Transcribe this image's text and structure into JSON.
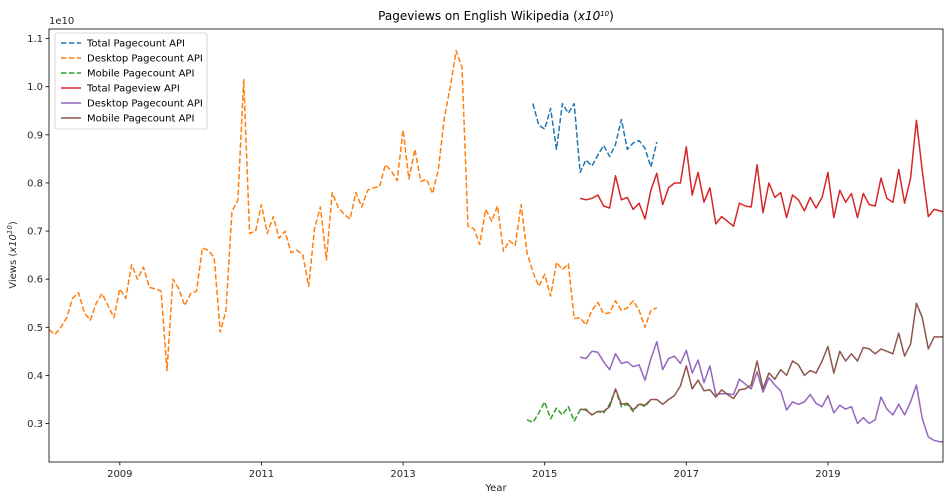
{
  "chart_data": {
    "type": "line",
    "title": {
      "prefix": "Pageviews on English Wikipedia (",
      "base": "x10",
      "exp": "10",
      "suffix": ")"
    },
    "xlabel": "Year",
    "ylabel": {
      "prefix": "Views (",
      "base": "x10",
      "exp": "10",
      "suffix": ")"
    },
    "y_offset_text": "1e10",
    "xlim": [
      2008.0,
      2020.625
    ],
    "ylim": [
      0.22,
      1.12
    ],
    "x_ticks": [
      2009,
      2011,
      2013,
      2015,
      2017,
      2019
    ],
    "x_tick_labels": [
      "2009",
      "2011",
      "2013",
      "2015",
      "2017",
      "2019"
    ],
    "y_ticks": [
      0.3,
      0.4,
      0.5,
      0.6,
      0.7,
      0.8,
      0.9,
      1.0,
      1.1
    ],
    "y_tick_labels": [
      "0.3",
      "0.4",
      "0.5",
      "0.6",
      "0.7",
      "0.8",
      "0.9",
      "1.0",
      "1.1"
    ],
    "grid": false,
    "legend_position": "top-left",
    "series": [
      {
        "name": "Total Pagecount API",
        "color": "#1f77b4",
        "dash": "dashed",
        "x": [
          2014.833,
          2014.917,
          2015.0,
          2015.083,
          2015.167,
          2015.25,
          2015.333,
          2015.417,
          2015.5,
          2015.583,
          2015.667,
          2015.75,
          2015.833,
          2015.917,
          2016.0,
          2016.083,
          2016.167,
          2016.25,
          2016.333,
          2016.417,
          2016.5,
          2016.583
        ],
        "y": [
          0.965,
          0.92,
          0.912,
          0.955,
          0.87,
          0.965,
          0.945,
          0.965,
          0.822,
          0.848,
          0.835,
          0.858,
          0.878,
          0.855,
          0.88,
          0.932,
          0.87,
          0.883,
          0.888,
          0.872,
          0.833,
          0.885
        ]
      },
      {
        "name": "Desktop Pagecount API",
        "color": "#ff7f0e",
        "dash": "dashed",
        "x": [
          2008.0,
          2008.083,
          2008.167,
          2008.25,
          2008.333,
          2008.417,
          2008.5,
          2008.583,
          2008.667,
          2008.75,
          2008.833,
          2008.917,
          2009.0,
          2009.083,
          2009.167,
          2009.25,
          2009.333,
          2009.417,
          2009.5,
          2009.583,
          2009.667,
          2009.75,
          2009.833,
          2009.917,
          2010.0,
          2010.083,
          2010.167,
          2010.25,
          2010.333,
          2010.417,
          2010.5,
          2010.583,
          2010.667,
          2010.75,
          2010.833,
          2010.917,
          2011.0,
          2011.083,
          2011.167,
          2011.25,
          2011.333,
          2011.417,
          2011.5,
          2011.583,
          2011.667,
          2011.75,
          2011.833,
          2011.917,
          2012.0,
          2012.083,
          2012.167,
          2012.25,
          2012.333,
          2012.417,
          2012.5,
          2012.583,
          2012.667,
          2012.75,
          2012.833,
          2012.917,
          2013.0,
          2013.083,
          2013.167,
          2013.25,
          2013.333,
          2013.417,
          2013.5,
          2013.583,
          2013.667,
          2013.75,
          2013.833,
          2013.917,
          2014.0,
          2014.083,
          2014.167,
          2014.25,
          2014.333,
          2014.417,
          2014.5,
          2014.583,
          2014.667,
          2014.75,
          2014.833,
          2014.917,
          2015.0,
          2015.083,
          2015.167,
          2015.25,
          2015.333,
          2015.417,
          2015.5,
          2015.583,
          2015.667,
          2015.75,
          2015.833,
          2015.917,
          2016.0,
          2016.083,
          2016.167,
          2016.25,
          2016.333,
          2016.417,
          2016.5,
          2016.583
        ],
        "y": [
          0.495,
          0.485,
          0.5,
          0.52,
          0.56,
          0.572,
          0.53,
          0.515,
          0.55,
          0.57,
          0.545,
          0.52,
          0.58,
          0.56,
          0.63,
          0.6,
          0.625,
          0.583,
          0.58,
          0.575,
          0.41,
          0.6,
          0.58,
          0.545,
          0.57,
          0.575,
          0.665,
          0.66,
          0.645,
          0.49,
          0.535,
          0.74,
          0.765,
          1.015,
          0.695,
          0.7,
          0.755,
          0.695,
          0.73,
          0.685,
          0.7,
          0.655,
          0.66,
          0.652,
          0.585,
          0.705,
          0.75,
          0.64,
          0.78,
          0.75,
          0.735,
          0.725,
          0.78,
          0.75,
          0.785,
          0.79,
          0.792,
          0.838,
          0.825,
          0.805,
          0.91,
          0.808,
          0.87,
          0.803,
          0.808,
          0.778,
          0.83,
          0.935,
          1.0,
          1.075,
          1.04,
          0.71,
          0.705,
          0.672,
          0.745,
          0.72,
          0.752,
          0.658,
          0.68,
          0.67,
          0.755,
          0.655,
          0.615,
          0.585,
          0.61,
          0.565,
          0.635,
          0.62,
          0.632,
          0.518,
          0.52,
          0.505,
          0.535,
          0.552,
          0.528,
          0.53,
          0.555,
          0.535,
          0.54,
          0.555,
          0.535,
          0.5,
          0.535,
          0.54
        ],
        "y_tail_fix": true
      },
      {
        "name": "Mobile Pagecount API",
        "color": "#2ca02c",
        "dash": "dashed",
        "x": [
          2014.75,
          2014.833,
          2014.917,
          2015.0,
          2015.083,
          2015.167,
          2015.25,
          2015.333,
          2015.417,
          2015.5,
          2015.583,
          2015.667,
          2015.75,
          2015.833,
          2015.917,
          2016.0,
          2016.083,
          2016.167,
          2016.25,
          2016.333,
          2016.417,
          2016.5
        ],
        "y": [
          0.308,
          0.302,
          0.322,
          0.345,
          0.31,
          0.332,
          0.318,
          0.335,
          0.305,
          0.328,
          0.33,
          0.318,
          0.325,
          0.322,
          0.34,
          0.37,
          0.335,
          0.34,
          0.325,
          0.342,
          0.335,
          0.35
        ]
      },
      {
        "name": "Total Pageview API",
        "color": "#d62728",
        "dash": "solid",
        "x": [
          2015.5,
          2015.583,
          2015.667,
          2015.75,
          2015.833,
          2015.917,
          2016.0,
          2016.083,
          2016.167,
          2016.25,
          2016.333,
          2016.417,
          2016.5,
          2016.583,
          2016.667,
          2016.75,
          2016.833,
          2016.917,
          2017.0,
          2017.083,
          2017.167,
          2017.25,
          2017.333,
          2017.417,
          2017.5,
          2017.583,
          2017.667,
          2017.75,
          2017.833,
          2017.917,
          2018.0,
          2018.083,
          2018.167,
          2018.25,
          2018.333,
          2018.417,
          2018.5,
          2018.583,
          2018.667,
          2018.75,
          2018.833,
          2018.917,
          2019.0,
          2019.083,
          2019.167,
          2019.25,
          2019.333,
          2019.417,
          2019.5,
          2019.583,
          2019.667,
          2019.75,
          2019.833,
          2019.917,
          2020.0,
          2020.083,
          2020.167,
          2020.25,
          2020.333,
          2020.417,
          2020.5,
          2020.583,
          2020.625
        ],
        "y": [
          0.768,
          0.765,
          0.768,
          0.775,
          0.752,
          0.748,
          0.815,
          0.765,
          0.77,
          0.745,
          0.758,
          0.725,
          0.785,
          0.82,
          0.755,
          0.79,
          0.8,
          0.8,
          0.875,
          0.775,
          0.822,
          0.76,
          0.79,
          0.715,
          0.73,
          0.72,
          0.71,
          0.758,
          0.752,
          0.75,
          0.838,
          0.738,
          0.8,
          0.77,
          0.78,
          0.728,
          0.775,
          0.765,
          0.742,
          0.77,
          0.748,
          0.77,
          0.822,
          0.728,
          0.785,
          0.76,
          0.778,
          0.728,
          0.778,
          0.755,
          0.752,
          0.81,
          0.768,
          0.76,
          0.828,
          0.758,
          0.81,
          0.93,
          0.825,
          0.73,
          0.745,
          0.742,
          0.74
        ]
      },
      {
        "name": "Desktop Pagecount API",
        "color": "#9467bd",
        "dash": "solid",
        "x": [
          2015.5,
          2015.583,
          2015.667,
          2015.75,
          2015.833,
          2015.917,
          2016.0,
          2016.083,
          2016.167,
          2016.25,
          2016.333,
          2016.417,
          2016.5,
          2016.583,
          2016.667,
          2016.75,
          2016.833,
          2016.917,
          2017.0,
          2017.083,
          2017.167,
          2017.25,
          2017.333,
          2017.417,
          2017.5,
          2017.583,
          2017.667,
          2017.75,
          2017.833,
          2017.917,
          2018.0,
          2018.083,
          2018.167,
          2018.25,
          2018.333,
          2018.417,
          2018.5,
          2018.583,
          2018.667,
          2018.75,
          2018.833,
          2018.917,
          2019.0,
          2019.083,
          2019.167,
          2019.25,
          2019.333,
          2019.417,
          2019.5,
          2019.583,
          2019.667,
          2019.75,
          2019.833,
          2019.917,
          2020.0,
          2020.083,
          2020.167,
          2020.25,
          2020.333,
          2020.417,
          2020.5,
          2020.583,
          2020.625
        ],
        "y": [
          0.438,
          0.435,
          0.45,
          0.448,
          0.428,
          0.412,
          0.445,
          0.425,
          0.428,
          0.418,
          0.422,
          0.39,
          0.435,
          0.47,
          0.412,
          0.435,
          0.44,
          0.425,
          0.452,
          0.405,
          0.432,
          0.385,
          0.42,
          0.36,
          0.362,
          0.362,
          0.36,
          0.392,
          0.382,
          0.372,
          0.408,
          0.365,
          0.395,
          0.38,
          0.368,
          0.328,
          0.345,
          0.34,
          0.345,
          0.36,
          0.342,
          0.335,
          0.358,
          0.322,
          0.338,
          0.33,
          0.335,
          0.3,
          0.312,
          0.3,
          0.308,
          0.355,
          0.33,
          0.318,
          0.34,
          0.318,
          0.345,
          0.38,
          0.31,
          0.272,
          0.265,
          0.262,
          0.262
        ]
      },
      {
        "name": "Mobile Pagecount API",
        "color": "#8c564b",
        "dash": "solid",
        "x": [
          2015.5,
          2015.583,
          2015.667,
          2015.75,
          2015.833,
          2015.917,
          2016.0,
          2016.083,
          2016.167,
          2016.25,
          2016.333,
          2016.417,
          2016.5,
          2016.583,
          2016.667,
          2016.75,
          2016.833,
          2016.917,
          2017.0,
          2017.083,
          2017.167,
          2017.25,
          2017.333,
          2017.417,
          2017.5,
          2017.583,
          2017.667,
          2017.75,
          2017.833,
          2017.917,
          2018.0,
          2018.083,
          2018.167,
          2018.25,
          2018.333,
          2018.417,
          2018.5,
          2018.583,
          2018.667,
          2018.75,
          2018.833,
          2018.917,
          2019.0,
          2019.083,
          2019.167,
          2019.25,
          2019.333,
          2019.417,
          2019.5,
          2019.583,
          2019.667,
          2019.75,
          2019.833,
          2019.917,
          2020.0,
          2020.083,
          2020.167,
          2020.25,
          2020.333,
          2020.417,
          2020.5,
          2020.583,
          2020.625
        ],
        "y": [
          0.33,
          0.328,
          0.318,
          0.325,
          0.325,
          0.335,
          0.372,
          0.34,
          0.342,
          0.328,
          0.34,
          0.338,
          0.35,
          0.35,
          0.34,
          0.35,
          0.358,
          0.378,
          0.42,
          0.372,
          0.39,
          0.368,
          0.37,
          0.355,
          0.37,
          0.36,
          0.352,
          0.37,
          0.372,
          0.38,
          0.43,
          0.372,
          0.405,
          0.392,
          0.412,
          0.4,
          0.43,
          0.422,
          0.4,
          0.41,
          0.405,
          0.43,
          0.46,
          0.405,
          0.45,
          0.43,
          0.445,
          0.43,
          0.458,
          0.455,
          0.445,
          0.455,
          0.45,
          0.445,
          0.488,
          0.44,
          0.465,
          0.55,
          0.52,
          0.455,
          0.48,
          0.48,
          0.48
        ]
      }
    ]
  }
}
